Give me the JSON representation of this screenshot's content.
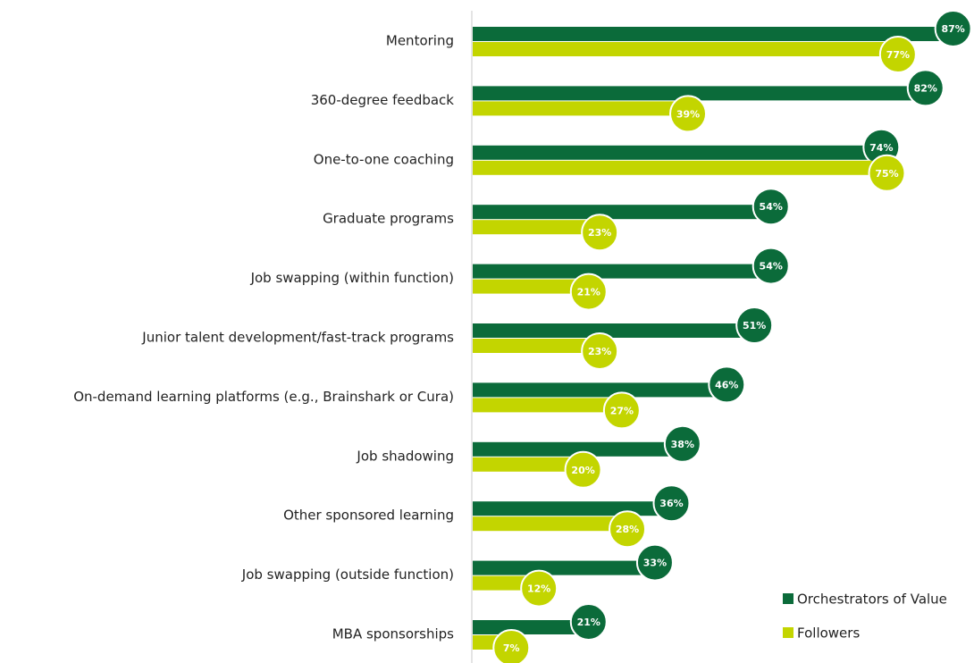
{
  "chart_data": {
    "type": "bar",
    "orientation": "horizontal",
    "categories": [
      "Mentoring",
      "360-degree feedback",
      "One-to-one coaching",
      "Graduate programs",
      "Job swapping (within function)",
      "Junior talent development/fast-track programs",
      "On-demand learning platforms (e.g., Brainshark or Cura)",
      "Job shadowing",
      "Other sponsored learning",
      "Job swapping (outside function)",
      "MBA sponsorships"
    ],
    "series": [
      {
        "name": "Orchestrators of Value",
        "color": "#0b6b3a",
        "values": [
          87,
          82,
          74,
          54,
          54,
          51,
          46,
          38,
          36,
          33,
          21
        ],
        "value_labels": [
          "87%",
          "82%",
          "74%",
          "54%",
          "54%",
          "51%",
          "46%",
          "38%",
          "36%",
          "33%",
          "21%"
        ]
      },
      {
        "name": "Followers",
        "color": "#c3d500",
        "values": [
          77,
          39,
          75,
          23,
          21,
          23,
          27,
          20,
          28,
          12,
          7
        ],
        "value_labels": [
          "77%",
          "39%",
          "75%",
          "23%",
          "21%",
          "23%",
          "27%",
          "20%",
          "28%",
          "12%",
          "7%"
        ]
      }
    ],
    "xlim": [
      0,
      100
    ],
    "legend": "bottom-right"
  }
}
